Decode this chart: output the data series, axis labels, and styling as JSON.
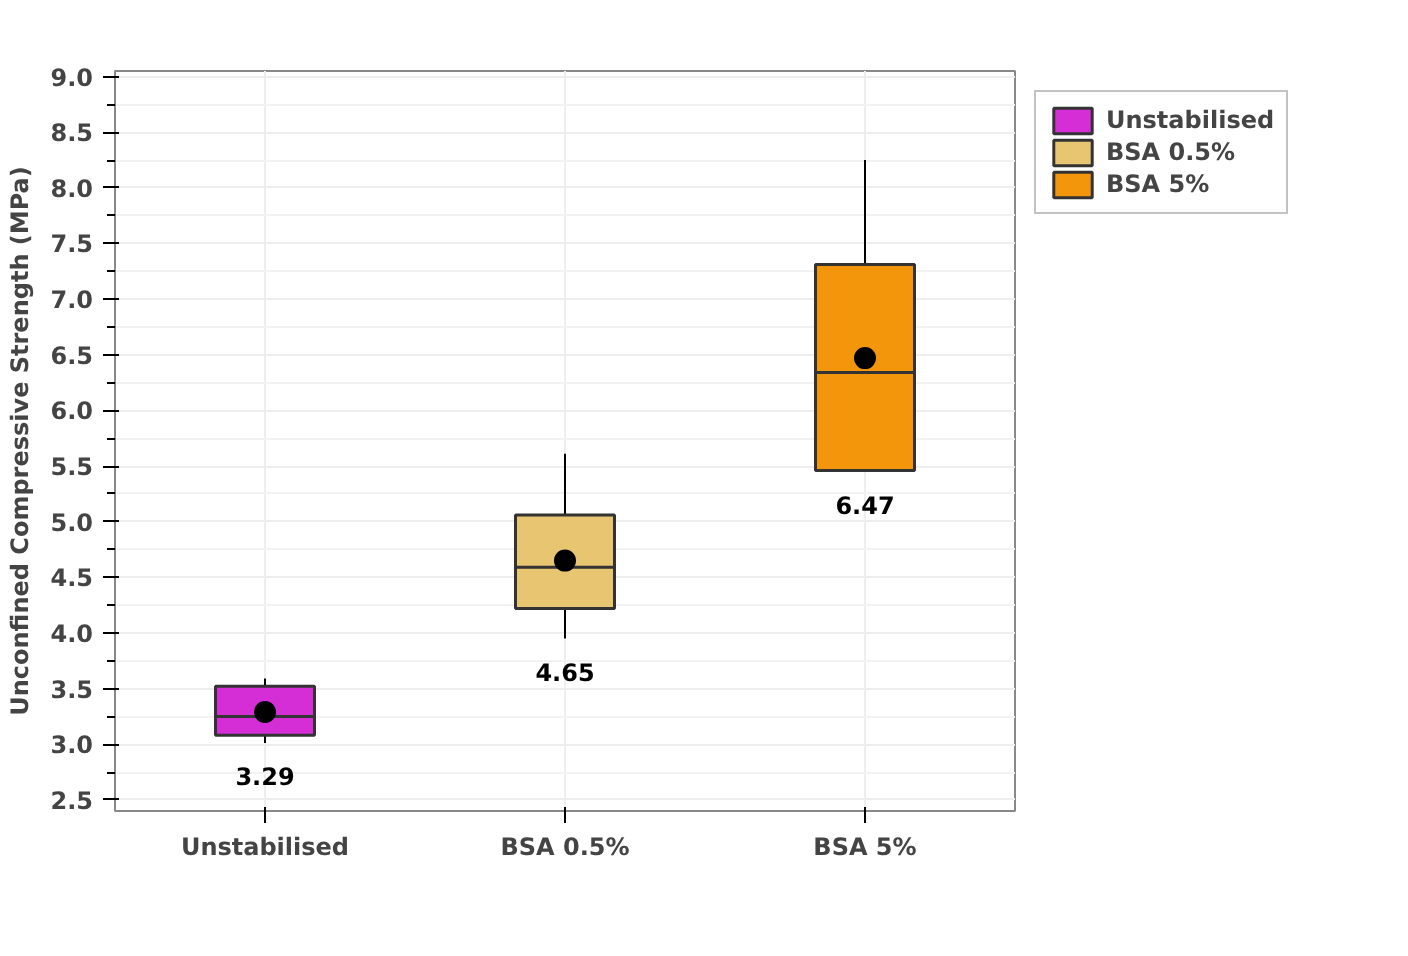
{
  "chart_data": {
    "type": "box",
    "ylabel": "Unconfined Compressive Strength (MPa)",
    "categories": [
      "Unstabilised",
      "BSA 0.5%",
      "BSA 5%"
    ],
    "series": [
      {
        "name": "Unstabilised",
        "color": "#d62ed6",
        "boxes": [
          {
            "low": 3.01,
            "q1": 3.08,
            "median": 3.25,
            "q3": 3.52,
            "high": 3.59,
            "mean": 3.29
          },
          null,
          null
        ]
      },
      {
        "name": "BSA 0.5%",
        "color": "#e8c571",
        "boxes": [
          null,
          {
            "low": 3.95,
            "q1": 4.22,
            "median": 4.59,
            "q3": 5.06,
            "high": 5.61,
            "mean": 4.65
          },
          null
        ]
      },
      {
        "name": "BSA 5%",
        "color": "#f4960c",
        "boxes": [
          null,
          null,
          {
            "low": 5.45,
            "q1": 5.46,
            "median": 6.34,
            "q3": 7.31,
            "high": 8.25,
            "mean": 6.47
          }
        ]
      }
    ],
    "annotations": [
      "3.29",
      "4.65",
      "6.47"
    ],
    "ylim": [
      2.4,
      9.05
    ],
    "yticks": [
      {
        "value": 2.5,
        "label": "2.5"
      },
      {
        "value": 3,
        "label": "3.0"
      },
      {
        "value": 3.5,
        "label": "3.5"
      },
      {
        "value": 4,
        "label": "4.0"
      },
      {
        "value": 4.5,
        "label": "4.5"
      },
      {
        "value": 5,
        "label": "5.0"
      },
      {
        "value": 5.5,
        "label": "5.5"
      },
      {
        "value": 6,
        "label": "6.0"
      },
      {
        "value": 6.5,
        "label": "6.5"
      },
      {
        "value": 7,
        "label": "7.0"
      },
      {
        "value": 7.5,
        "label": "7.5"
      },
      {
        "value": 8,
        "label": "8.0"
      },
      {
        "value": 8.5,
        "label": "8.5"
      },
      {
        "value": 9,
        "label": "9.0"
      }
    ],
    "grid": true,
    "legend": "right",
    "marker": "circle"
  }
}
